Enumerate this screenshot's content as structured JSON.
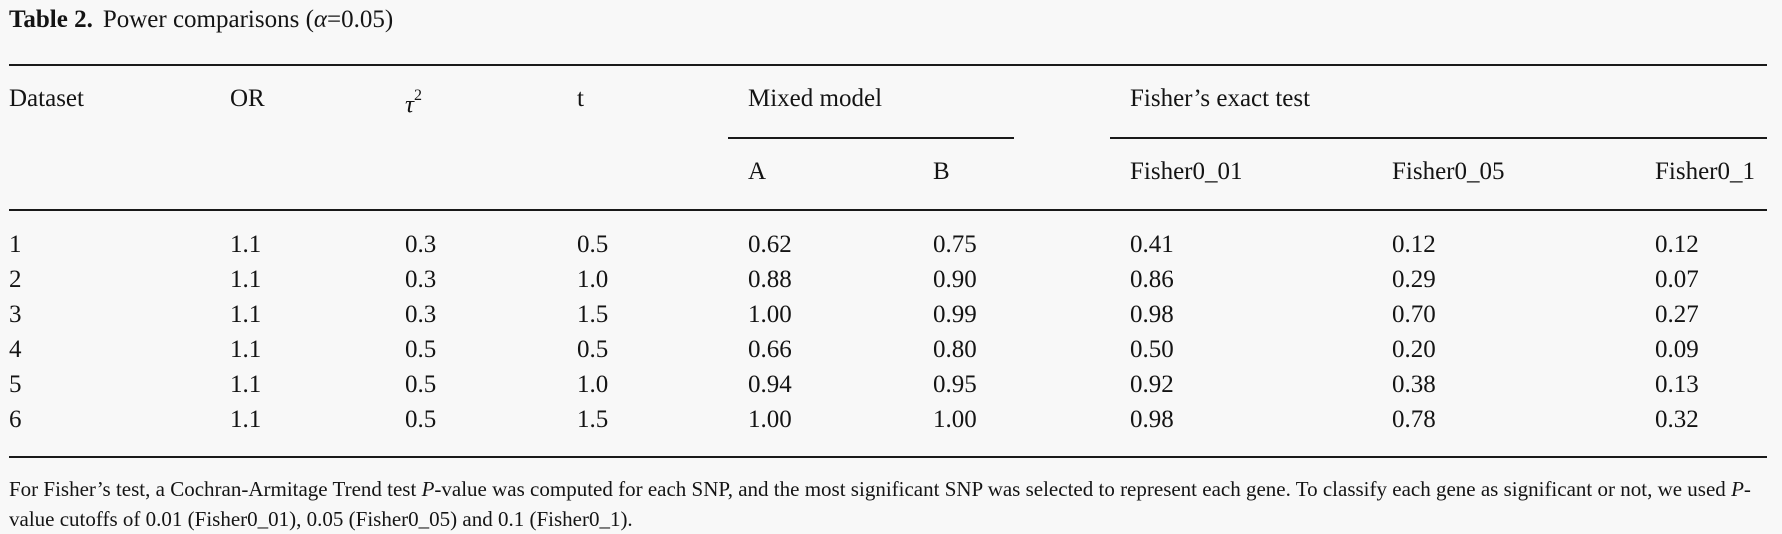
{
  "caption": {
    "label": "Table 2.",
    "title_prefix": "Power comparisons (",
    "alpha_symbol": "α",
    "title_suffix": "=0.05)"
  },
  "headers": {
    "dataset": "Dataset",
    "or": "OR",
    "tau_symbol": "τ",
    "tau_exponent": "2",
    "t": "t",
    "group_mixed": "Mixed model",
    "group_fisher": "Fisher’s exact test",
    "a": "A",
    "b": "B",
    "fisher01": "Fisher0_01",
    "fisher05": "Fisher0_05",
    "fisher1": "Fisher0_1"
  },
  "rows": [
    [
      "1",
      "1.1",
      "0.3",
      "0.5",
      "0.62",
      "0.75",
      "0.41",
      "0.12",
      "0.12"
    ],
    [
      "2",
      "1.1",
      "0.3",
      "1.0",
      "0.88",
      "0.90",
      "0.86",
      "0.29",
      "0.07"
    ],
    [
      "3",
      "1.1",
      "0.3",
      "1.5",
      "1.00",
      "0.99",
      "0.98",
      "0.70",
      "0.27"
    ],
    [
      "4",
      "1.1",
      "0.5",
      "0.5",
      "0.66",
      "0.80",
      "0.50",
      "0.20",
      "0.09"
    ],
    [
      "5",
      "1.1",
      "0.5",
      "1.0",
      "0.94",
      "0.95",
      "0.92",
      "0.38",
      "0.13"
    ],
    [
      "6",
      "1.1",
      "0.5",
      "1.5",
      "1.00",
      "1.00",
      "0.98",
      "0.78",
      "0.32"
    ]
  ],
  "footnote": {
    "part1": "For Fisher’s test, a Cochran-Armitage Trend test ",
    "p1": "P",
    "part2": "-value was computed for each SNP, and the most significant SNP was selected to represent each gene. To classify each gene as significant or not, we used ",
    "p2": "P",
    "part3": "-value cutoffs of 0.01 (Fisher0_01), 0.05 (Fisher0_05) and 0.1 (Fisher0_1)."
  }
}
